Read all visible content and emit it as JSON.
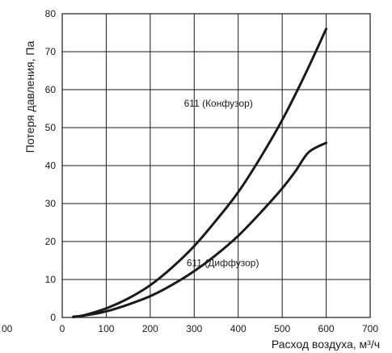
{
  "chart_data": {
    "type": "line",
    "title": "",
    "xlabel": "Расход воздуха, м³/ч",
    "ylabel": "Потеря давления, Па",
    "xlim": [
      0,
      700
    ],
    "ylim": [
      0,
      80
    ],
    "x_ticks": [
      0,
      100,
      200,
      300,
      400,
      500,
      600,
      700
    ],
    "y_ticks": [
      0,
      10,
      20,
      30,
      40,
      50,
      60,
      70,
      80
    ],
    "edge_tick_fragment": "00",
    "grid": true,
    "legend": "none",
    "series": [
      {
        "name": "611 (Конфузор)",
        "x": [
          25,
          50,
          100,
          150,
          200,
          250,
          300,
          350,
          400,
          450,
          500,
          550,
          600
        ],
        "y": [
          0.2,
          0.6,
          2.4,
          5.0,
          8.5,
          13.2,
          18.8,
          25.6,
          33.0,
          42.0,
          52.0,
          63.5,
          76.0
        ]
      },
      {
        "name": "611 (Диффузор)",
        "x": [
          25,
          50,
          100,
          150,
          200,
          250,
          300,
          350,
          400,
          450,
          500,
          530,
          560,
          600
        ],
        "y": [
          0.1,
          0.5,
          1.6,
          3.4,
          5.6,
          8.6,
          12.2,
          16.5,
          21.5,
          27.5,
          34.0,
          38.5,
          43.5,
          46.0
        ]
      }
    ],
    "annotations": [
      {
        "text": "611 (Конфузор)",
        "x": 355,
        "y": 55.5
      },
      {
        "text": "611 (Диффузор)",
        "x": 365,
        "y": 13.5
      }
    ]
  }
}
